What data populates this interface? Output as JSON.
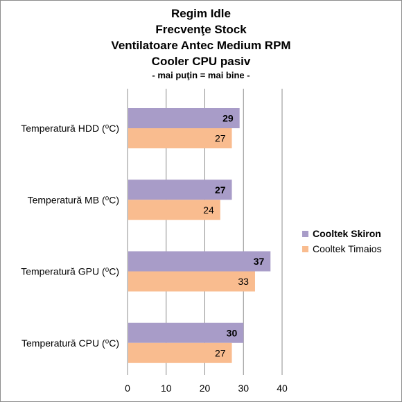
{
  "title_lines": [
    "Regim Idle",
    "Frecvenţe Stock",
    "Ventilatoare Antec Medium RPM",
    "Cooler CPU pasiv",
    "- mai puţin = mai bine -"
  ],
  "chart_data": {
    "type": "bar",
    "orientation": "horizontal",
    "categories": [
      "Temperatură  HDD (⁰C)",
      "Temperatură  MB (⁰C)",
      "Temperatură  GPU (⁰C)",
      "Temperatură  CPU (⁰C)"
    ],
    "series": [
      {
        "name": "Cooltek Skiron",
        "values": [
          29,
          27,
          37,
          30
        ],
        "color": "#a89cc8",
        "bold": true
      },
      {
        "name": "Cooltek Timaios",
        "values": [
          27,
          24,
          33,
          27
        ],
        "color": "#f9bc8f",
        "bold": false
      }
    ],
    "xlim": [
      0,
      40
    ],
    "xticks": [
      "0",
      "10",
      "20",
      "30",
      "40"
    ],
    "grid": "vertical",
    "legend_position": "right"
  }
}
